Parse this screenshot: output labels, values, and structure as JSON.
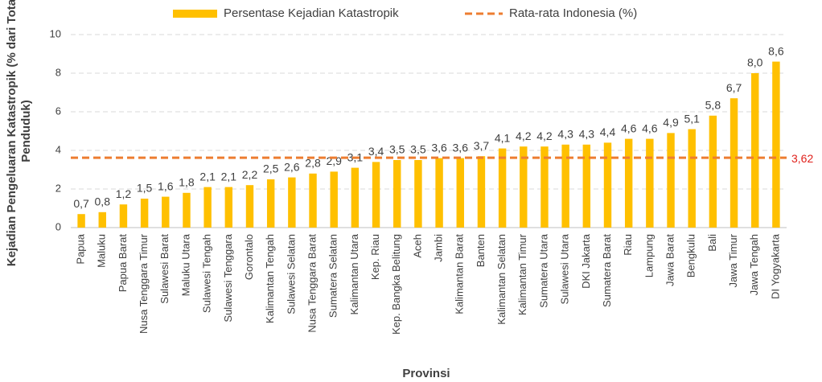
{
  "chart_data": {
    "type": "bar",
    "xlabel": "Provinsi",
    "ylabel": "Kejadian Pengeluaran Katastropik (% dari Total Penduduk)",
    "categories": [
      "Papua",
      "Maluku",
      "Papua Barat",
      "Nusa Tenggara Timur",
      "Sulawesi Barat",
      "Maluku Utara",
      "Sulawesi Tengah",
      "Sulawesi Tenggara",
      "Gorontalo",
      "Kalimantan Tengah",
      "Sulawesi Selatan",
      "Nusa Tenggara Barat",
      "Sumatera Selatan",
      "Kalimantan Utara",
      "Kep. Riau",
      "Kep. Bangka Belitung",
      "Aceh",
      "Jambi",
      "Kalimantan Barat",
      "Banten",
      "Kalimantan Selatan",
      "Kalimantan Timur",
      "Sumatera Utara",
      "Sulawesi Utara",
      "DKI Jakarta",
      "Sumatera Barat",
      "Riau",
      "Lampung",
      "Jawa Barat",
      "Bengkulu",
      "Bali",
      "Jawa Timur",
      "Jawa Tengah",
      "DI Yogyakarta"
    ],
    "series": [
      {
        "name": "Persentase Kejadian Katastropik",
        "color": "#FFC000",
        "values": [
          0.7,
          0.8,
          1.2,
          1.5,
          1.6,
          1.8,
          2.1,
          2.1,
          2.2,
          2.5,
          2.6,
          2.8,
          2.9,
          3.1,
          3.4,
          3.5,
          3.5,
          3.6,
          3.6,
          3.7,
          4.1,
          4.2,
          4.2,
          4.3,
          4.3,
          4.4,
          4.6,
          4.6,
          4.9,
          5.1,
          5.8,
          6.7,
          8.0,
          8.6
        ],
        "value_labels": [
          "0,7",
          "0,8",
          "1,2",
          "1,5",
          "1,6",
          "1,8",
          "2,1",
          "2,1",
          "2,2",
          "2,5",
          "2,6",
          "2,8",
          "2,9",
          "3,1",
          "3,4",
          "3,5",
          "3,5",
          "3,6",
          "3,6",
          "3,7",
          "4,1",
          "4,2",
          "4,2",
          "4,3",
          "4,3",
          "4,4",
          "4,6",
          "4,6",
          "4,9",
          "5,1",
          "5,8",
          "6,7",
          "8,0",
          "8,6"
        ]
      }
    ],
    "reference_line": {
      "name": "Rata-rata Indonesia (%)",
      "value": 3.62,
      "value_label": "3,62",
      "color": "#ED7D31"
    },
    "ylim": [
      0,
      10
    ],
    "yticks": [
      0,
      2,
      4,
      6,
      8,
      10
    ],
    "grid": true
  }
}
